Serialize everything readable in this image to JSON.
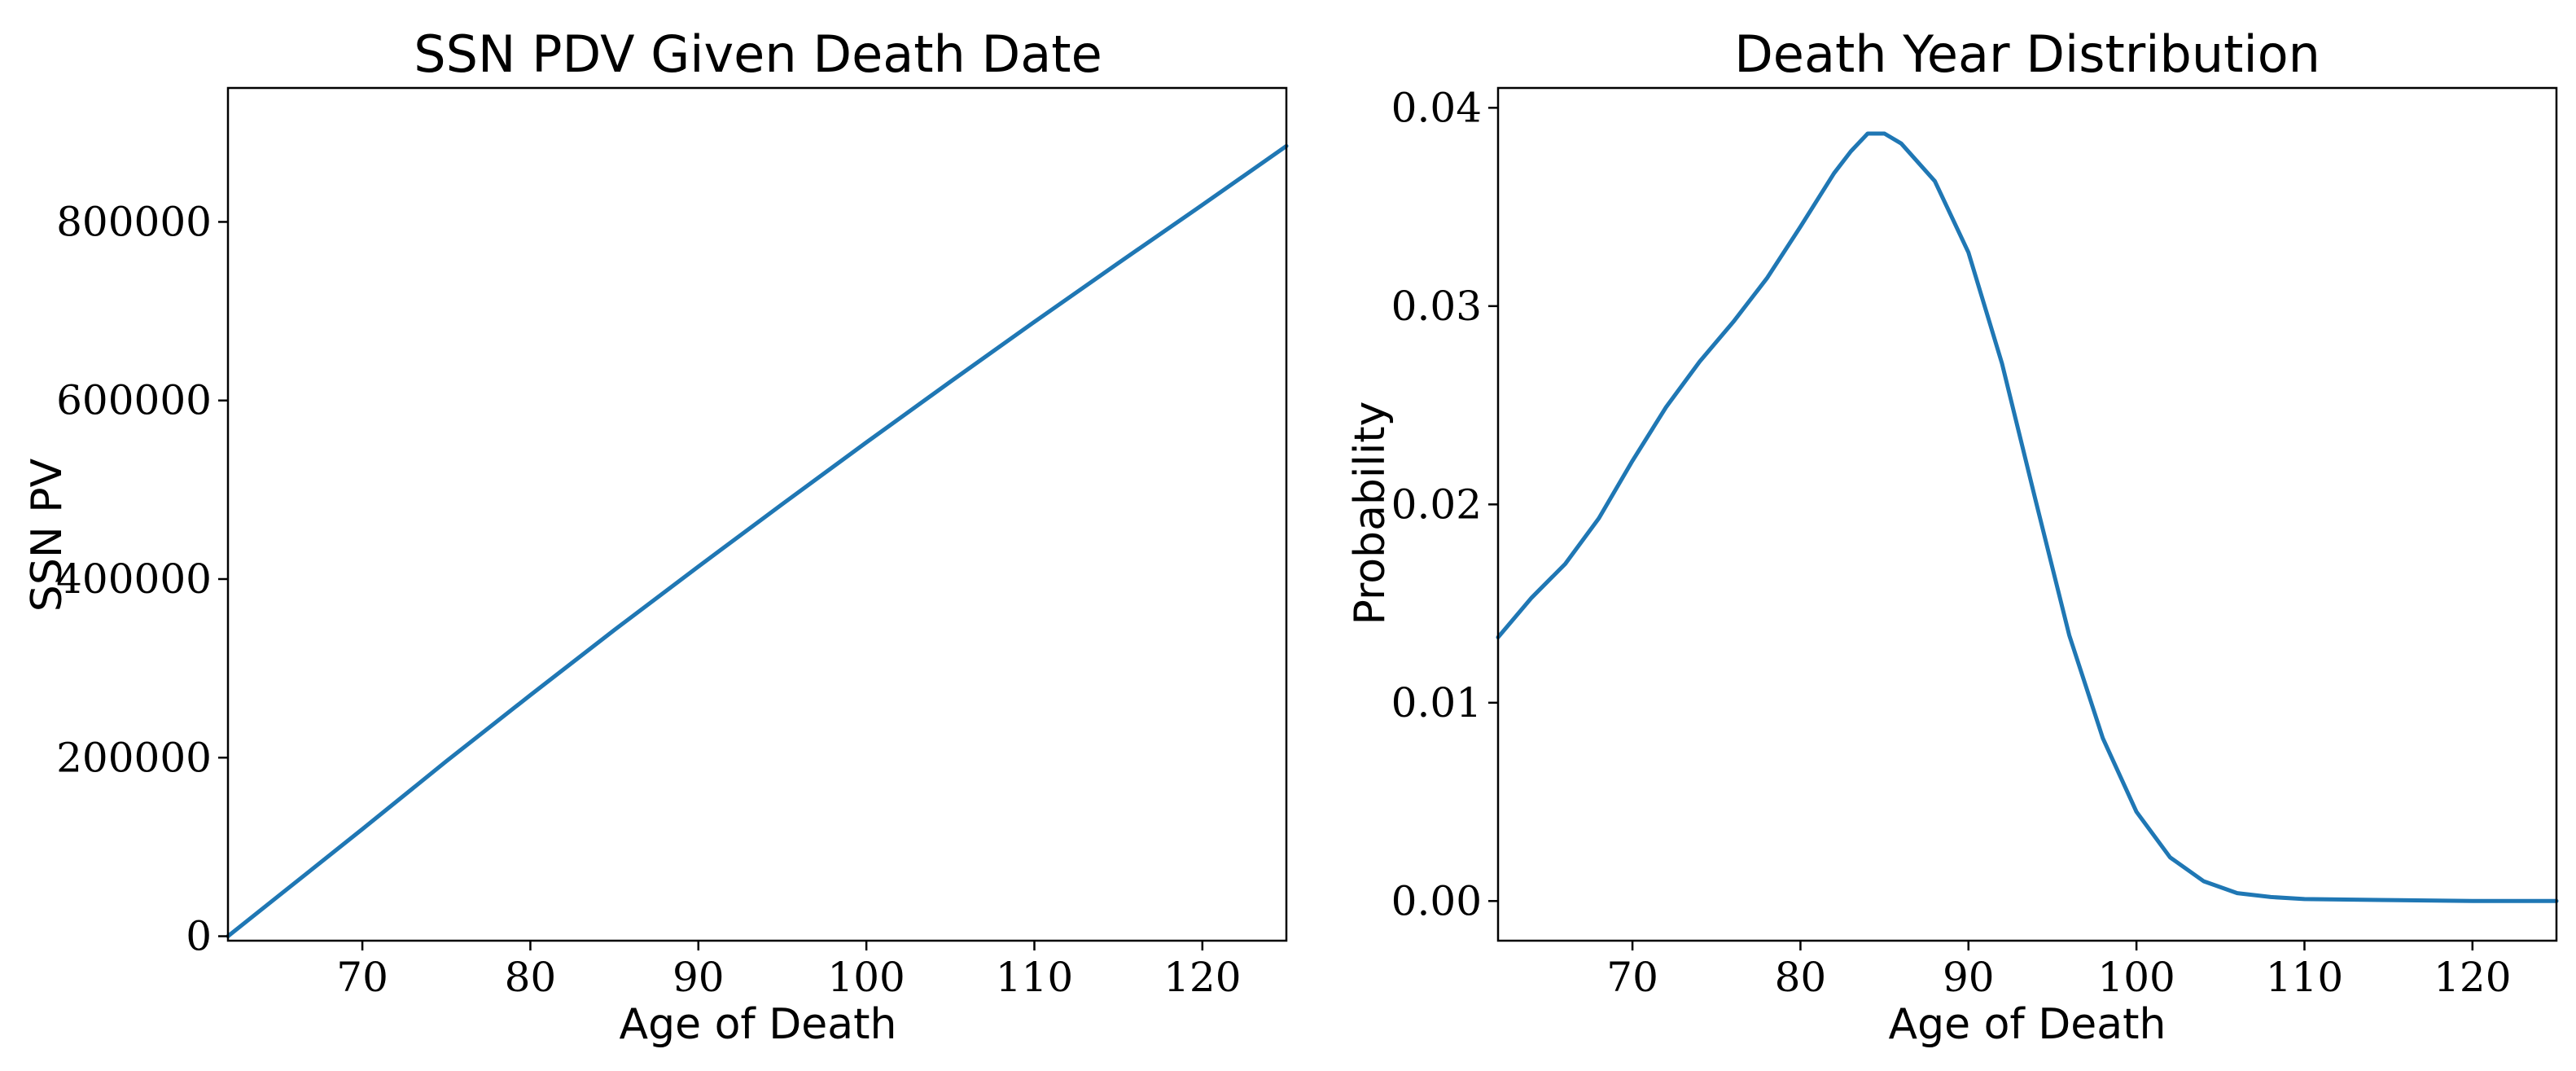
{
  "colors": {
    "series": "#1f77b4"
  },
  "chart_data": [
    {
      "type": "line",
      "title": "SSN PDV Given Death Date",
      "xlabel": "Age of Death",
      "ylabel": "SSN PV",
      "xlim": [
        62,
        125
      ],
      "ylim": [
        -5000,
        950000
      ],
      "xticks": [
        70,
        80,
        90,
        100,
        110,
        120
      ],
      "yticks": [
        0,
        200000,
        400000,
        600000,
        800000
      ],
      "grid": false,
      "series": [
        {
          "x": [
            62,
            65,
            70,
            75,
            80,
            85,
            90,
            95,
            100,
            105,
            110,
            115,
            120,
            125
          ],
          "y": [
            0,
            45000,
            120000,
            196000,
            270000,
            343000,
            414000,
            484000,
            553000,
            621000,
            688000,
            754000,
            819000,
            885000
          ]
        }
      ]
    },
    {
      "type": "line",
      "title": "Death Year Distribution",
      "xlabel": "Age of Death",
      "ylabel": "Probability",
      "xlim": [
        62,
        125
      ],
      "ylim": [
        -0.002,
        0.041
      ],
      "xticks": [
        70,
        80,
        90,
        100,
        110,
        120
      ],
      "yticks": [
        0.0,
        0.01,
        0.02,
        0.03,
        0.04
      ],
      "ytick_labels": [
        "0.00",
        "0.01",
        "0.02",
        "0.03",
        "0.04"
      ],
      "grid": false,
      "series": [
        {
          "x": [
            62,
            64,
            66,
            68,
            70,
            72,
            74,
            76,
            78,
            80,
            82,
            83,
            84,
            85,
            86,
            88,
            90,
            92,
            94,
            96,
            98,
            100,
            102,
            104,
            106,
            108,
            110,
            115,
            120,
            125
          ],
          "y": [
            0.0133,
            0.0153,
            0.017,
            0.0193,
            0.0222,
            0.0249,
            0.0272,
            0.0292,
            0.0314,
            0.034,
            0.0367,
            0.0378,
            0.0387,
            0.0387,
            0.0382,
            0.0363,
            0.0327,
            0.0271,
            0.0202,
            0.0134,
            0.0082,
            0.0045,
            0.0022,
            0.001,
            0.0004,
            0.0002,
            0.0001,
            5e-05,
            0.0,
            0.0
          ]
        }
      ]
    }
  ]
}
